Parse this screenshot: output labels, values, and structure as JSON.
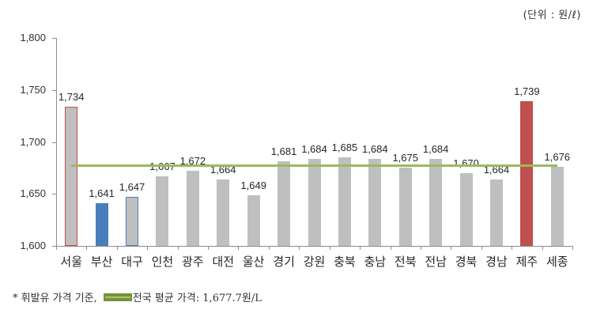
{
  "unit_label": "(단위 : 원/ℓ)",
  "chart_data": {
    "type": "bar",
    "title": "",
    "xlabel": "",
    "ylabel": "",
    "unit": "원/ℓ",
    "ylim": [
      1600,
      1800
    ],
    "yticks": [
      "1,600",
      "1,650",
      "1,700",
      "1,750",
      "1,800"
    ],
    "grid": false,
    "categories": [
      "서울",
      "부산",
      "대구",
      "인천",
      "광주",
      "대전",
      "울산",
      "경기",
      "강원",
      "충북",
      "충남",
      "전북",
      "전남",
      "경북",
      "경남",
      "제주",
      "세종"
    ],
    "values": [
      1734,
      1641,
      1647,
      1667,
      1672,
      1664,
      1649,
      1681,
      1684,
      1685,
      1684,
      1675,
      1684,
      1670,
      1664,
      1739,
      1676
    ],
    "value_labels": [
      "1,734",
      "1,641",
      "1,647",
      "1,667",
      "1,672",
      "1,664",
      "1,649",
      "1,681",
      "1,684",
      "1,685",
      "1,684",
      "1,675",
      "1,684",
      "1,670",
      "1,664",
      "1,739",
      "1,676"
    ],
    "bar_styles": [
      {
        "fill": "#bfbfbf",
        "border": "#c0504d"
      },
      {
        "fill": "#4a7ebb",
        "border": "#4a7ebb"
      },
      {
        "fill": "#bfbfbf",
        "border": "#4a7ebb"
      },
      {
        "fill": "#bfbfbf",
        "border": "#bfbfbf"
      },
      {
        "fill": "#bfbfbf",
        "border": "#bfbfbf"
      },
      {
        "fill": "#bfbfbf",
        "border": "#bfbfbf"
      },
      {
        "fill": "#bfbfbf",
        "border": "#bfbfbf"
      },
      {
        "fill": "#bfbfbf",
        "border": "#bfbfbf"
      },
      {
        "fill": "#bfbfbf",
        "border": "#bfbfbf"
      },
      {
        "fill": "#bfbfbf",
        "border": "#bfbfbf"
      },
      {
        "fill": "#bfbfbf",
        "border": "#bfbfbf"
      },
      {
        "fill": "#bfbfbf",
        "border": "#bfbfbf"
      },
      {
        "fill": "#bfbfbf",
        "border": "#bfbfbf"
      },
      {
        "fill": "#bfbfbf",
        "border": "#bfbfbf"
      },
      {
        "fill": "#bfbfbf",
        "border": "#bfbfbf"
      },
      {
        "fill": "#c0504d",
        "border": "#c0504d"
      },
      {
        "fill": "#bfbfbf",
        "border": "#bfbfbf"
      }
    ],
    "reference_line": {
      "name": "전국 평균 가격",
      "value": 1677.7,
      "color": "#9bbb59"
    },
    "legend_position": "bottom-left footnote"
  },
  "footnote": {
    "prefix": "* 휘발유 가격 기준,",
    "legend_label": "전국 평균 가격: 1,677.7원/L"
  }
}
